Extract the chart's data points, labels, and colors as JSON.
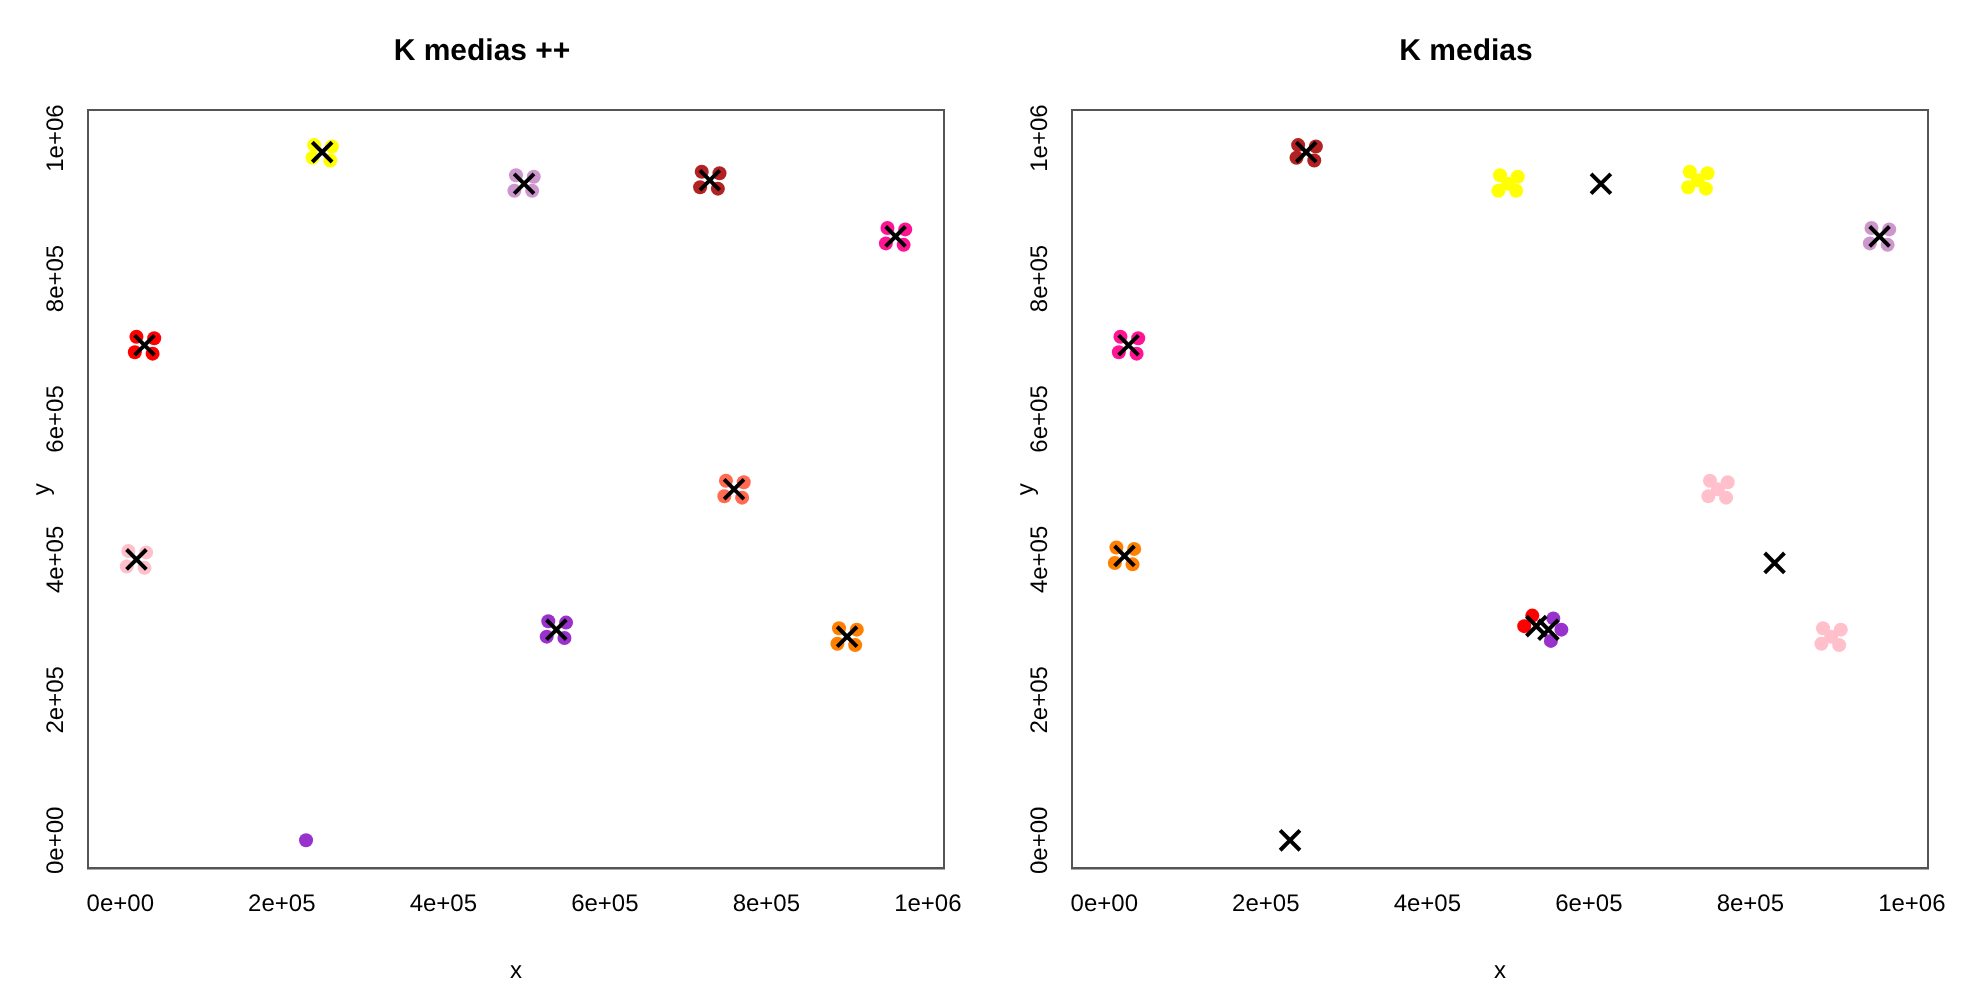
{
  "chart_data": [
    {
      "type": "scatter",
      "title": "K medias ++",
      "xlabel": "x",
      "ylabel": "y",
      "grid": false,
      "legend": false,
      "xlim": [
        -40000,
        1020000
      ],
      "ylim": [
        -40000,
        1040000
      ],
      "xticks": [
        {
          "value": 0,
          "label": "0e+00"
        },
        {
          "value": 200000,
          "label": "2e+05"
        },
        {
          "value": 400000,
          "label": "4e+05"
        },
        {
          "value": 600000,
          "label": "6e+05"
        },
        {
          "value": 800000,
          "label": "8e+05"
        },
        {
          "value": 1000000,
          "label": "1e+06"
        }
      ],
      "yticks": [
        {
          "value": 0,
          "label": "0e+00"
        },
        {
          "value": 200000,
          "label": "2e+05"
        },
        {
          "value": 400000,
          "label": "4e+05"
        },
        {
          "value": 600000,
          "label": "6e+05"
        },
        {
          "value": 800000,
          "label": "8e+05"
        },
        {
          "value": 1000000,
          "label": "1e+06"
        }
      ],
      "series": [
        {
          "color": "#000000",
          "marker": "cross",
          "x": [
            250000,
            500000,
            730000,
            960000,
            30000,
            760000,
            20000,
            540000,
            900000
          ],
          "values": [
            980000,
            935000,
            940000,
            860000,
            705000,
            500000,
            400000,
            300000,
            290000
          ]
        },
        {
          "color": "#ffff00",
          "marker": "circle",
          "x": [
            262000,
            238000,
            260000,
            240000
          ],
          "values": [
            988000,
            972000,
            968000,
            990000
          ]
        },
        {
          "color": "#cd96cd",
          "marker": "circle",
          "x": [
            512000,
            488000,
            510000,
            490000
          ],
          "values": [
            945000,
            925000,
            925000,
            947000
          ]
        },
        {
          "color": "#b22222",
          "marker": "circle",
          "x": [
            742000,
            718000,
            740000,
            720000
          ],
          "values": [
            950000,
            930000,
            928000,
            952000
          ]
        },
        {
          "color": "#ff1493",
          "marker": "circle",
          "x": [
            972000,
            948000,
            970000,
            950000
          ],
          "values": [
            870000,
            850000,
            848000,
            872000
          ]
        },
        {
          "color": "#ff0000",
          "marker": "circle",
          "x": [
            42000,
            18000,
            40000,
            20000
          ],
          "values": [
            715000,
            695000,
            693000,
            717000
          ]
        },
        {
          "color": "#ff6a50",
          "marker": "circle",
          "x": [
            772000,
            748000,
            770000,
            750000
          ],
          "values": [
            510000,
            490000,
            488000,
            512000
          ]
        },
        {
          "color": "#ffc0cb",
          "marker": "circle",
          "x": [
            32000,
            8000,
            30000,
            10000
          ],
          "values": [
            410000,
            390000,
            388000,
            412000
          ]
        },
        {
          "color": "#9932cc",
          "marker": "circle",
          "x": [
            552000,
            528000,
            550000,
            530000,
            230000
          ],
          "values": [
            310000,
            290000,
            288000,
            312000,
            0
          ]
        },
        {
          "color": "#ff7f00",
          "marker": "circle",
          "x": [
            912000,
            888000,
            910000,
            890000
          ],
          "values": [
            300000,
            280000,
            278000,
            302000
          ]
        }
      ]
    },
    {
      "type": "scatter",
      "title": "K medias",
      "xlabel": "x",
      "ylabel": "y",
      "grid": false,
      "legend": false,
      "xlim": [
        -40000,
        1020000
      ],
      "ylim": [
        -40000,
        1040000
      ],
      "xticks": [
        {
          "value": 0,
          "label": "0e+00"
        },
        {
          "value": 200000,
          "label": "2e+05"
        },
        {
          "value": 400000,
          "label": "4e+05"
        },
        {
          "value": 600000,
          "label": "6e+05"
        },
        {
          "value": 800000,
          "label": "8e+05"
        },
        {
          "value": 1000000,
          "label": "1e+06"
        }
      ],
      "yticks": [
        {
          "value": 0,
          "label": "0e+00"
        },
        {
          "value": 200000,
          "label": "2e+05"
        },
        {
          "value": 400000,
          "label": "4e+05"
        },
        {
          "value": 600000,
          "label": "6e+05"
        },
        {
          "value": 800000,
          "label": "8e+05"
        },
        {
          "value": 1000000,
          "label": "1e+06"
        }
      ],
      "series": [
        {
          "color": "#000000",
          "marker": "cross",
          "x": [
            250000,
            615000,
            960000,
            30000,
            25000,
            535000,
            550000,
            830000,
            230000
          ],
          "values": [
            980000,
            935000,
            860000,
            705000,
            405000,
            305000,
            300000,
            395000,
            0
          ]
        },
        {
          "color": "#b22222",
          "marker": "circle",
          "x": [
            262000,
            238000,
            260000,
            240000
          ],
          "values": [
            988000,
            972000,
            968000,
            990000
          ]
        },
        {
          "color": "#ffff00",
          "marker": "circle",
          "x": [
            500000,
            512000,
            488000,
            510000,
            490000,
            735000,
            747000,
            723000,
            745000,
            725000
          ],
          "values": [
            935000,
            945000,
            925000,
            925000,
            947000,
            940000,
            950000,
            930000,
            928000,
            952000
          ]
        },
        {
          "color": "#cd96cd",
          "marker": "circle",
          "x": [
            972000,
            948000,
            970000,
            950000
          ],
          "values": [
            870000,
            850000,
            848000,
            872000
          ]
        },
        {
          "color": "#ff1493",
          "marker": "circle",
          "x": [
            42000,
            18000,
            40000,
            20000
          ],
          "values": [
            715000,
            695000,
            693000,
            717000
          ]
        },
        {
          "color": "#ff7f00",
          "marker": "circle",
          "x": [
            37000,
            13000,
            35000,
            15000
          ],
          "values": [
            415000,
            395000,
            393000,
            417000
          ]
        },
        {
          "color": "#9932cc",
          "marker": "circle",
          "x": [
            566000,
            553000,
            556000
          ],
          "values": [
            300000,
            284000,
            316000
          ]
        },
        {
          "color": "#ff0000",
          "marker": "circle",
          "x": [
            520000,
            530000
          ],
          "values": [
            305000,
            320000
          ]
        },
        {
          "color": "#ffc0cb",
          "marker": "circle",
          "x": [
            760000,
            772000,
            748000,
            770000,
            750000,
            900000,
            912000,
            888000,
            910000,
            890000
          ],
          "values": [
            500000,
            510000,
            490000,
            488000,
            512000,
            290000,
            300000,
            280000,
            278000,
            302000
          ]
        }
      ]
    }
  ]
}
